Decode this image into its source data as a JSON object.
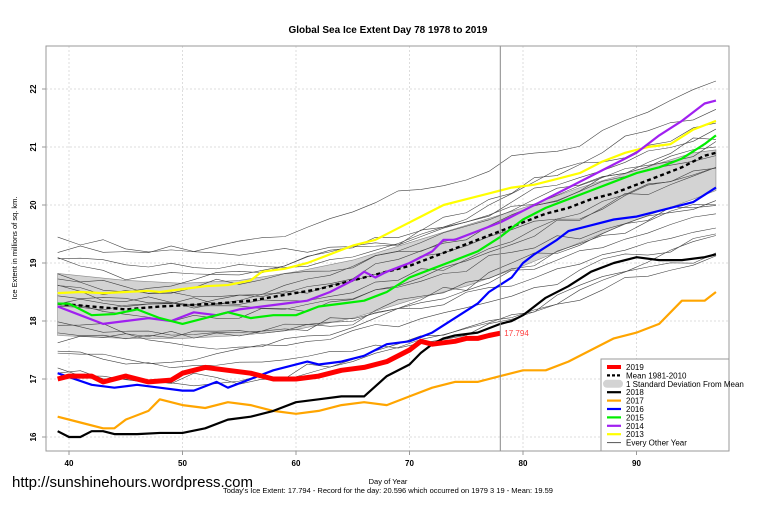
{
  "chart_data": {
    "type": "line",
    "title": "Global Sea Ice Extent Day 78 1978 to 2019",
    "xlabel": "Day of Year",
    "ylabel": "Ice Extent in millions of sq. km.",
    "xlim": [
      38,
      98
    ],
    "ylim": [
      15.9,
      22.65
    ],
    "xticks": [
      40,
      50,
      60,
      70,
      80,
      90
    ],
    "yticks": [
      16,
      17,
      18,
      19,
      20,
      21,
      22
    ],
    "grid": true,
    "current_day": 78,
    "current_value_label": "17.794",
    "footer": "Today's Ice Extent: 17.794  - Record for the day: 20.596 which occurred on 1979 3 19  - Mean: 19.59",
    "watermark": "http://sunshinehours.wordpress.com",
    "legend": {
      "position": "bottom-right",
      "entries": [
        {
          "label": "2019",
          "color": "#ff0000",
          "style": "thick"
        },
        {
          "label": "Mean 1981-2010",
          "color": "#000000",
          "style": "dashed"
        },
        {
          "label": "1 Standard Deviation From Mean",
          "color": "#d3d3d3",
          "style": "band"
        },
        {
          "label": "2018",
          "color": "#000000",
          "style": "solid"
        },
        {
          "label": "2017",
          "color": "#ffa500",
          "style": "solid"
        },
        {
          "label": "2016",
          "color": "#0000ff",
          "style": "solid"
        },
        {
          "label": "2015",
          "color": "#00ee00",
          "style": "solid"
        },
        {
          "label": "2014",
          "color": "#a020f0",
          "style": "solid"
        },
        {
          "label": "2013",
          "color": "#ffff00",
          "style": "solid"
        },
        {
          "label": "Every Other Year",
          "color": "#555555",
          "style": "thin"
        }
      ]
    },
    "band": {
      "name": "1 Standard Deviation From Mean",
      "x": [
        39,
        45,
        50,
        55,
        60,
        65,
        70,
        75,
        80,
        85,
        90,
        95,
        97
      ],
      "upper": [
        18.82,
        18.7,
        18.65,
        18.7,
        18.85,
        19.05,
        19.35,
        19.65,
        19.95,
        20.3,
        20.6,
        20.9,
        20.95
      ],
      "lower": [
        17.75,
        17.7,
        17.7,
        17.75,
        17.85,
        18.05,
        18.35,
        18.6,
        18.95,
        19.35,
        19.75,
        20.1,
        20.25
      ]
    },
    "series": [
      {
        "name": "Mean 1981-2010",
        "color": "#000000",
        "style": "dashed",
        "x": [
          39,
          42,
          45,
          48,
          50,
          53,
          56,
          59,
          62,
          65,
          68,
          70,
          72,
          74,
          76,
          78,
          80,
          82,
          84,
          86,
          88,
          90,
          92,
          94,
          96,
          97
        ],
        "y": [
          18.3,
          18.25,
          18.2,
          18.25,
          18.27,
          18.3,
          18.35,
          18.45,
          18.55,
          18.7,
          18.85,
          18.95,
          19.1,
          19.25,
          19.4,
          19.55,
          19.7,
          19.85,
          19.95,
          20.1,
          20.2,
          20.35,
          20.5,
          20.65,
          20.85,
          20.9
        ]
      },
      {
        "name": "2013",
        "color": "#ffff00",
        "style": "solid",
        "x": [
          39,
          41,
          43,
          45,
          47,
          48,
          50,
          52,
          54,
          56,
          57,
          59,
          61,
          63,
          65,
          67,
          69,
          71,
          73,
          75,
          77,
          78,
          79,
          81,
          83,
          85,
          87,
          89,
          91,
          93,
          95,
          97
        ],
        "y": [
          18.48,
          18.5,
          18.48,
          18.5,
          18.52,
          18.5,
          18.55,
          18.6,
          18.62,
          18.7,
          18.85,
          18.9,
          19.0,
          19.15,
          19.3,
          19.4,
          19.6,
          19.8,
          20.0,
          20.1,
          20.2,
          20.25,
          20.3,
          20.35,
          20.45,
          20.55,
          20.75,
          20.9,
          21.0,
          21.05,
          21.3,
          21.45
        ]
      },
      {
        "name": "2014",
        "color": "#a020f0",
        "style": "solid",
        "x": [
          39,
          41,
          43,
          45,
          47,
          49,
          51,
          53,
          55,
          57,
          59,
          61,
          63,
          65,
          66,
          67,
          68,
          70,
          72,
          73,
          74,
          76,
          78,
          80,
          82,
          84,
          86,
          88,
          90,
          92,
          94,
          96,
          97
        ],
        "y": [
          18.25,
          18.1,
          17.95,
          18.0,
          18.05,
          18.0,
          18.15,
          18.1,
          18.2,
          18.25,
          18.3,
          18.35,
          18.5,
          18.7,
          18.85,
          18.75,
          18.85,
          19.0,
          19.2,
          19.4,
          19.4,
          19.55,
          19.7,
          19.9,
          20.1,
          20.3,
          20.5,
          20.7,
          20.9,
          21.2,
          21.45,
          21.75,
          21.8
        ]
      },
      {
        "name": "2015",
        "color": "#00ee00",
        "style": "solid",
        "x": [
          39,
          40,
          42,
          44,
          46,
          48,
          50,
          52,
          54,
          56,
          58,
          60,
          62,
          64,
          66,
          68,
          70,
          72,
          74,
          76,
          78,
          80,
          82,
          84,
          86,
          88,
          90,
          92,
          94,
          96,
          97
        ],
        "y": [
          18.3,
          18.3,
          18.1,
          18.12,
          18.2,
          18.05,
          17.95,
          18.05,
          18.15,
          18.05,
          18.1,
          18.1,
          18.25,
          18.3,
          18.35,
          18.5,
          18.75,
          18.9,
          19.05,
          19.2,
          19.45,
          19.75,
          19.95,
          20.1,
          20.25,
          20.4,
          20.55,
          20.65,
          20.8,
          21.05,
          21.2
        ]
      },
      {
        "name": "2016",
        "color": "#0000ff",
        "style": "solid",
        "x": [
          39,
          42,
          44,
          46,
          48,
          50,
          51,
          53,
          54,
          56,
          58,
          61,
          62,
          64,
          66,
          68,
          70,
          72,
          74,
          76,
          77,
          79,
          80,
          81,
          83,
          84,
          86,
          88,
          90,
          93,
          95,
          97
        ],
        "y": [
          17.1,
          16.9,
          16.85,
          16.9,
          16.85,
          16.8,
          16.8,
          16.95,
          16.85,
          17.0,
          17.15,
          17.3,
          17.25,
          17.3,
          17.4,
          17.6,
          17.65,
          17.8,
          18.05,
          18.3,
          18.5,
          18.75,
          19.0,
          19.15,
          19.4,
          19.55,
          19.65,
          19.75,
          19.8,
          19.95,
          20.05,
          20.3
        ]
      },
      {
        "name": "2017",
        "color": "#ffa500",
        "style": "solid",
        "x": [
          39,
          41,
          43,
          44,
          45,
          47,
          48,
          50,
          52,
          54,
          56,
          58,
          60,
          62,
          64,
          66,
          68,
          70,
          72,
          74,
          76,
          78,
          80,
          82,
          84,
          86,
          88,
          90,
          92,
          94,
          96,
          97
        ],
        "y": [
          16.35,
          16.25,
          16.15,
          16.15,
          16.3,
          16.45,
          16.65,
          16.55,
          16.5,
          16.6,
          16.55,
          16.45,
          16.4,
          16.45,
          16.55,
          16.6,
          16.55,
          16.7,
          16.85,
          16.95,
          16.95,
          17.05,
          17.15,
          17.15,
          17.3,
          17.5,
          17.7,
          17.8,
          17.95,
          18.35,
          18.35,
          18.5
        ]
      },
      {
        "name": "2018",
        "color": "#000000",
        "style": "solid",
        "x": [
          39,
          40,
          41,
          42,
          43,
          44,
          46,
          48,
          50,
          52,
          54,
          56,
          58,
          60,
          62,
          64,
          66,
          68,
          70,
          71,
          72,
          73,
          74,
          76,
          78,
          79,
          80,
          82,
          84,
          86,
          88,
          90,
          92,
          94,
          96,
          97
        ],
        "y": [
          16.1,
          16.0,
          16.0,
          16.1,
          16.1,
          16.05,
          16.05,
          16.07,
          16.07,
          16.15,
          16.3,
          16.35,
          16.45,
          16.6,
          16.65,
          16.7,
          16.7,
          17.05,
          17.25,
          17.45,
          17.6,
          17.7,
          17.75,
          17.8,
          17.95,
          18.0,
          18.1,
          18.4,
          18.6,
          18.85,
          19.0,
          19.1,
          19.05,
          19.05,
          19.1,
          19.15
        ]
      },
      {
        "name": "2019",
        "color": "#ff0000",
        "style": "thick",
        "x": [
          39,
          40,
          42,
          43,
          45,
          47,
          49,
          50,
          52,
          54,
          56,
          58,
          60,
          62,
          64,
          66,
          68,
          70,
          71,
          72,
          74,
          75,
          76,
          77,
          78
        ],
        "y": [
          17.0,
          17.05,
          17.05,
          16.95,
          17.05,
          16.95,
          16.98,
          17.1,
          17.2,
          17.15,
          17.1,
          17.0,
          17.0,
          17.05,
          17.15,
          17.2,
          17.3,
          17.5,
          17.65,
          17.6,
          17.65,
          17.7,
          17.7,
          17.75,
          17.79
        ]
      }
    ]
  }
}
